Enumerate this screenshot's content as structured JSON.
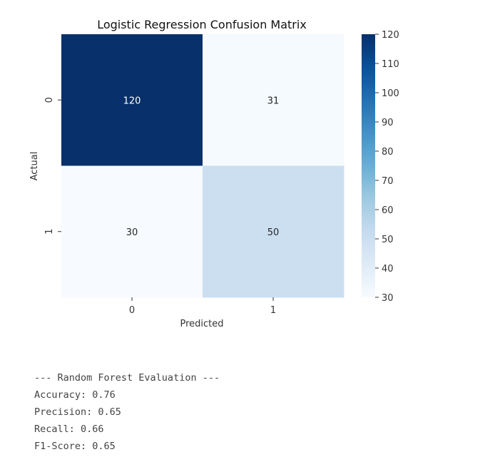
{
  "chart_data": {
    "type": "heatmap",
    "title": "Logistic Regression Confusion Matrix",
    "xlabel": "Predicted",
    "ylabel": "Actual",
    "x_categories": [
      "0",
      "1"
    ],
    "y_categories": [
      "0",
      "1"
    ],
    "values": [
      [
        120,
        31
      ],
      [
        30,
        50
      ]
    ],
    "colorbar": {
      "min": 30,
      "max": 120,
      "ticks": [
        30,
        40,
        50,
        60,
        70,
        80,
        90,
        100,
        110,
        120
      ],
      "colormap": "Blues"
    },
    "colors": {
      "low": "#f7fbff",
      "high": "#08306b"
    }
  },
  "output": {
    "header": "--- Random Forest Evaluation ---",
    "accuracy": "Accuracy: 0.76",
    "precision": "Precision: 0.65",
    "recall": "Recall: 0.66",
    "f1": "F1-Score: 0.65"
  }
}
